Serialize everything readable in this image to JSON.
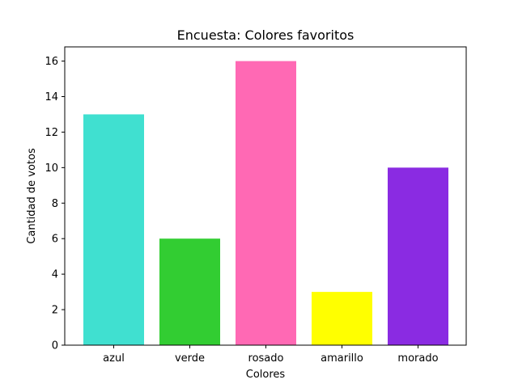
{
  "chart_data": {
    "type": "bar",
    "title": "Encuesta: Colores favoritos",
    "xlabel": "Colores",
    "ylabel": "Cantidad de votos",
    "categories": [
      "azul",
      "verde",
      "rosado",
      "amarillo",
      "morado"
    ],
    "values": [
      13,
      6,
      16,
      3,
      10
    ],
    "colors": [
      "#40e0d0",
      "#32cd32",
      "#ff69b4",
      "#ffff00",
      "#8a2be2"
    ],
    "ylim": [
      0,
      16.8
    ],
    "yticks": [
      0,
      2,
      4,
      6,
      8,
      10,
      12,
      14,
      16
    ],
    "grid": false,
    "legend": "none"
  }
}
